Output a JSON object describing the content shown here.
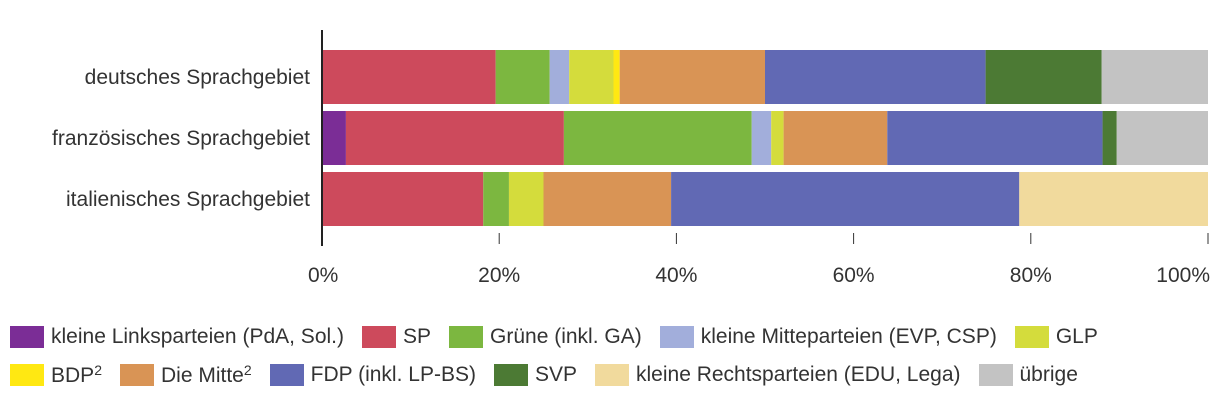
{
  "chart_data": {
    "type": "bar",
    "orientation": "horizontal",
    "stacked": true,
    "title": "",
    "xlabel": "",
    "ylabel": "",
    "xlim": [
      0,
      100
    ],
    "x_ticks": [
      "0%",
      "20%",
      "40%",
      "60%",
      "80%",
      "100%"
    ],
    "categories": [
      "deutsches Sprachgebiet",
      "französisches Sprachgebiet",
      "italienisches Sprachgebiet"
    ],
    "series": [
      {
        "name": "kleine Linksparteien (PdA, Sol.)",
        "color": "#7b2d96",
        "values": [
          0,
          2.7,
          0
        ]
      },
      {
        "name": "SP",
        "color": "#cd4a5c",
        "values": [
          19.6,
          24.6,
          18.2
        ]
      },
      {
        "name": "Grüne (inkl. GA)",
        "color": "#7cb740",
        "values": [
          6.1,
          21.2,
          2.9
        ]
      },
      {
        "name": "kleine Mitteparteien (EVP, CSP)",
        "color": "#a2aedb",
        "values": [
          2.2,
          2.2,
          0
        ]
      },
      {
        "name": "GLP",
        "color": "#d4dc3c",
        "values": [
          5.0,
          1.4,
          3.9
        ]
      },
      {
        "name": "BDP",
        "color": "#ffe812",
        "values": [
          0.7,
          0,
          0
        ]
      },
      {
        "name": "Die Mitte",
        "color": "#d99455",
        "values": [
          16.4,
          11.7,
          14.4
        ]
      },
      {
        "name": "FDP (inkl. LP-BS)",
        "color": "#6169b4",
        "values": [
          24.9,
          24.3,
          39.3
        ]
      },
      {
        "name": "SVP",
        "color": "#4c7a34",
        "values": [
          13.1,
          1.6,
          0
        ]
      },
      {
        "name": "kleine Rechtsparteien (EDU, Lega)",
        "color": "#f1da9d",
        "values": [
          0,
          0,
          21.3
        ]
      },
      {
        "name": "übrige",
        "color": "#c3c3c3",
        "values": [
          12.0,
          10.3,
          0
        ]
      }
    ],
    "legend": {
      "placement": "bottom",
      "rows": [
        [
          {
            "label": "kleine Linksparteien (PdA, Sol.)",
            "sup": "",
            "color": "#7b2d96"
          },
          {
            "label": "SP",
            "sup": "",
            "color": "#cd4a5c"
          },
          {
            "label": "Grüne (inkl. GA)",
            "sup": "",
            "color": "#7cb740"
          },
          {
            "label": "kleine Mitteparteien (EVP, CSP)",
            "sup": "",
            "color": "#a2aedb"
          },
          {
            "label": "GLP",
            "sup": "",
            "color": "#d4dc3c"
          }
        ],
        [
          {
            "label": "BDP",
            "sup": "2",
            "color": "#ffe812"
          },
          {
            "label": "Die Mitte",
            "sup": "2",
            "color": "#d99455"
          },
          {
            "label": "FDP (inkl. LP-BS)",
            "sup": "",
            "color": "#6169b4"
          },
          {
            "label": "SVP",
            "sup": "",
            "color": "#4c7a34"
          },
          {
            "label": "kleine Rechtsparteien (EDU, Lega)",
            "sup": "",
            "color": "#f1da9d"
          },
          {
            "label": "übrige",
            "sup": "",
            "color": "#c3c3c3"
          }
        ]
      ]
    }
  }
}
